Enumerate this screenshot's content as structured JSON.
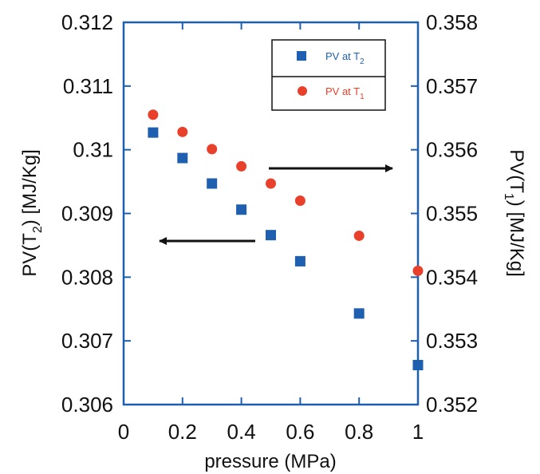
{
  "chart_data": {
    "type": "scatter",
    "x_label": "pressure (MPa)",
    "y_left_label": {
      "pre": "PV(T",
      "sub": "2",
      "post": ") [MJ/Kg]"
    },
    "y_right_label": {
      "pre": "PV(T",
      "sub": "1",
      "post": ") [MJ/Kg]"
    },
    "xlim": [
      0,
      1
    ],
    "y_left_lim": [
      0.306,
      0.312
    ],
    "y_right_lim": [
      0.352,
      0.358
    ],
    "x_ticks": [
      "0",
      "0.2",
      "0.4",
      "0.6",
      "0.8",
      "1"
    ],
    "x_tick_values": [
      0,
      0.2,
      0.4,
      0.6,
      0.8,
      1
    ],
    "y_left_ticks": [
      "0.306",
      "0.307",
      "0.308",
      "0.309",
      "0.31",
      "0.311",
      "0.312"
    ],
    "y_left_tick_values": [
      0.306,
      0.307,
      0.308,
      0.309,
      0.31,
      0.311,
      0.312
    ],
    "y_right_ticks": [
      "0.352",
      "0.353",
      "0.354",
      "0.355",
      "0.356",
      "0.357",
      "0.358"
    ],
    "y_right_tick_values": [
      0.352,
      0.353,
      0.354,
      0.355,
      0.356,
      0.357,
      0.358
    ],
    "series": [
      {
        "legend_pre": "PV at T",
        "legend_sub": "2",
        "axis": "left",
        "marker": "square",
        "color": "#1f5fb0",
        "points": [
          [
            0.1,
            0.31027
          ],
          [
            0.2,
            0.30987
          ],
          [
            0.3,
            0.30947
          ],
          [
            0.4,
            0.30906
          ],
          [
            0.5,
            0.30866
          ],
          [
            0.6,
            0.30825
          ],
          [
            0.8,
            0.30743
          ],
          [
            1.0,
            0.30662
          ]
        ]
      },
      {
        "legend_pre": "PV at T",
        "legend_sub": "1",
        "axis": "right",
        "marker": "circle",
        "color": "#e8402a",
        "points": [
          [
            0.1,
            0.35655
          ],
          [
            0.2,
            0.35628
          ],
          [
            0.3,
            0.35601
          ],
          [
            0.4,
            0.35574
          ],
          [
            0.5,
            0.35547
          ],
          [
            0.6,
            0.3552
          ],
          [
            0.8,
            0.35465
          ],
          [
            1.0,
            0.3541
          ]
        ]
      }
    ],
    "annotations": [
      {
        "type": "arrow",
        "direction": "right",
        "meaning": "points to right axis"
      },
      {
        "type": "arrow",
        "direction": "left",
        "meaning": "points to left axis"
      }
    ]
  }
}
